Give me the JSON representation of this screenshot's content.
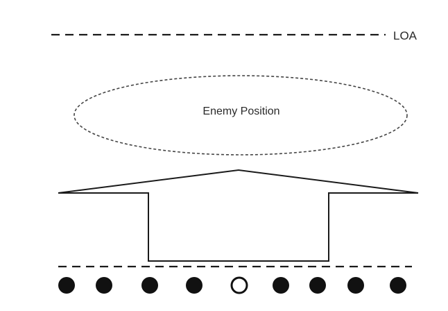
{
  "diagram": {
    "loa_label": "LOA",
    "objective_label": "Enemy Position",
    "arrow_icon": "attack-arrow-icon",
    "soldier_icons": [
      "filled-circle-icon",
      "filled-circle-icon",
      "filled-circle-icon",
      "filled-circle-icon",
      "hollow-circle-icon",
      "filled-circle-icon",
      "filled-circle-icon",
      "filled-circle-icon",
      "filled-circle-icon"
    ],
    "line_color": "#1a1a1a",
    "ellipse_color": "#444444",
    "text_color": "#2a2a2a"
  }
}
